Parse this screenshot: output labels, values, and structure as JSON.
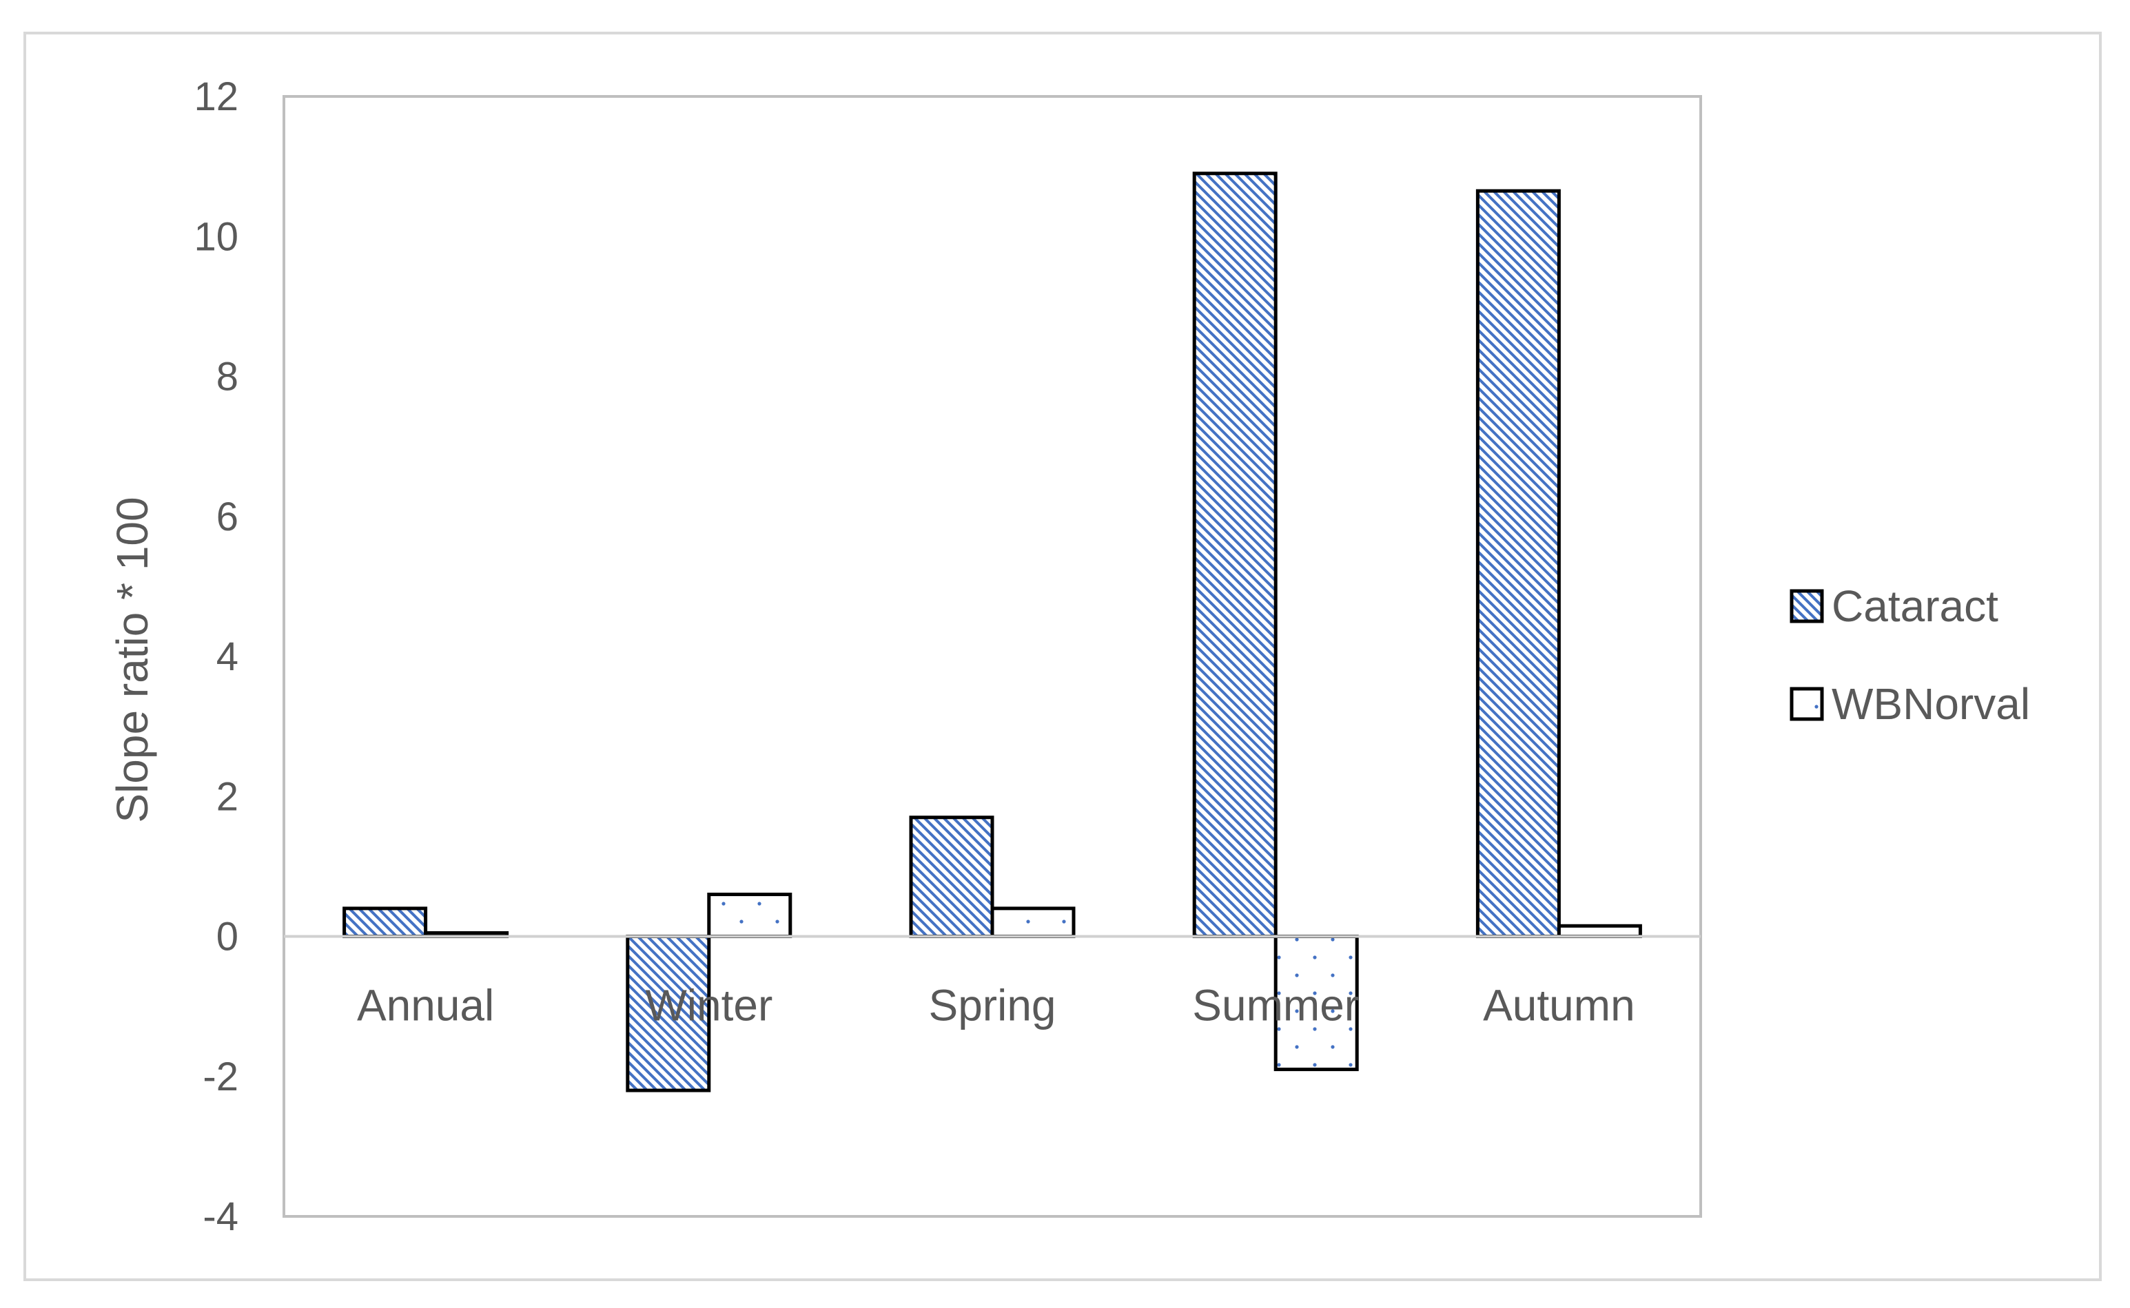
{
  "chart_data": {
    "type": "bar",
    "title": "",
    "xlabel": "",
    "ylabel": "Slope ratio * 100",
    "ylim": [
      -4,
      12
    ],
    "yticks": [
      -4,
      -2,
      0,
      2,
      4,
      6,
      8,
      10,
      12
    ],
    "grid": false,
    "legend_position": "right",
    "categories": [
      "Annual",
      "Winter",
      "Spring",
      "Summer",
      "Autumn"
    ],
    "series": [
      {
        "name": "Cataract",
        "values": [
          0.4,
          -2.2,
          1.7,
          10.9,
          10.65
        ],
        "color": "#4472C4",
        "pattern": "diagonal-hatch"
      },
      {
        "name": "WBNorval",
        "values": [
          0.05,
          0.6,
          0.4,
          -1.9,
          0.15
        ],
        "color": "#4472C4",
        "pattern": "sparse-dots"
      }
    ]
  }
}
